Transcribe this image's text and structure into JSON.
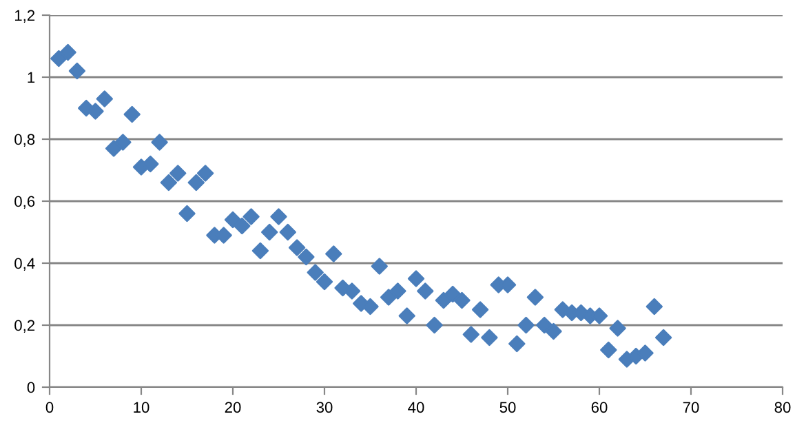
{
  "chart_data": {
    "type": "scatter",
    "marker": "diamond",
    "grid": "y",
    "legend": false,
    "xlim": [
      0,
      80
    ],
    "xticks": [
      0,
      10,
      20,
      30,
      40,
      50,
      60,
      70,
      80
    ],
    "ylim": [
      0,
      1.2
    ],
    "yticks": [
      0,
      {
        "value": 0.2,
        "label": "0,2"
      },
      {
        "value": 0.4,
        "label": "0,4"
      },
      {
        "value": 0.6,
        "label": "0,6"
      },
      {
        "value": 0.8,
        "label": "0,8"
      },
      1,
      {
        "value": 1.2,
        "label": "1,2"
      }
    ],
    "x": [
      1,
      2,
      3,
      4,
      5,
      6,
      7,
      8,
      9,
      10,
      11,
      12,
      13,
      14,
      15,
      16,
      17,
      18,
      19,
      20,
      21,
      22,
      23,
      24,
      25,
      26,
      27,
      28,
      29,
      30,
      31,
      32,
      33,
      34,
      35,
      36,
      37,
      38,
      39,
      40,
      41,
      42,
      43,
      44,
      45,
      46,
      47,
      48,
      49,
      50,
      51,
      52,
      53,
      54,
      55,
      56,
      57,
      58,
      59,
      60,
      61,
      62,
      63,
      64,
      65,
      66,
      67
    ],
    "series": [
      {
        "color": "#4a7ebb",
        "values": [
          1.06,
          1.08,
          1.02,
          0.9,
          0.89,
          0.93,
          0.77,
          0.79,
          0.88,
          0.71,
          0.72,
          0.79,
          0.66,
          0.69,
          0.56,
          0.66,
          0.69,
          0.49,
          0.49,
          0.54,
          0.52,
          0.55,
          0.44,
          0.5,
          0.55,
          0.5,
          0.45,
          0.42,
          0.37,
          0.34,
          0.43,
          0.32,
          0.31,
          0.27,
          0.26,
          0.39,
          0.29,
          0.31,
          0.23,
          0.35,
          0.31,
          0.2,
          0.28,
          0.3,
          0.28,
          0.17,
          0.25,
          0.16,
          0.33,
          0.33,
          0.14,
          0.2,
          0.29,
          0.2,
          0.18,
          0.25,
          0.24,
          0.24,
          0.23,
          0.23,
          0.12,
          0.19,
          0.09,
          0.1,
          0.11,
          0.26,
          0.16
        ]
      }
    ]
  }
}
